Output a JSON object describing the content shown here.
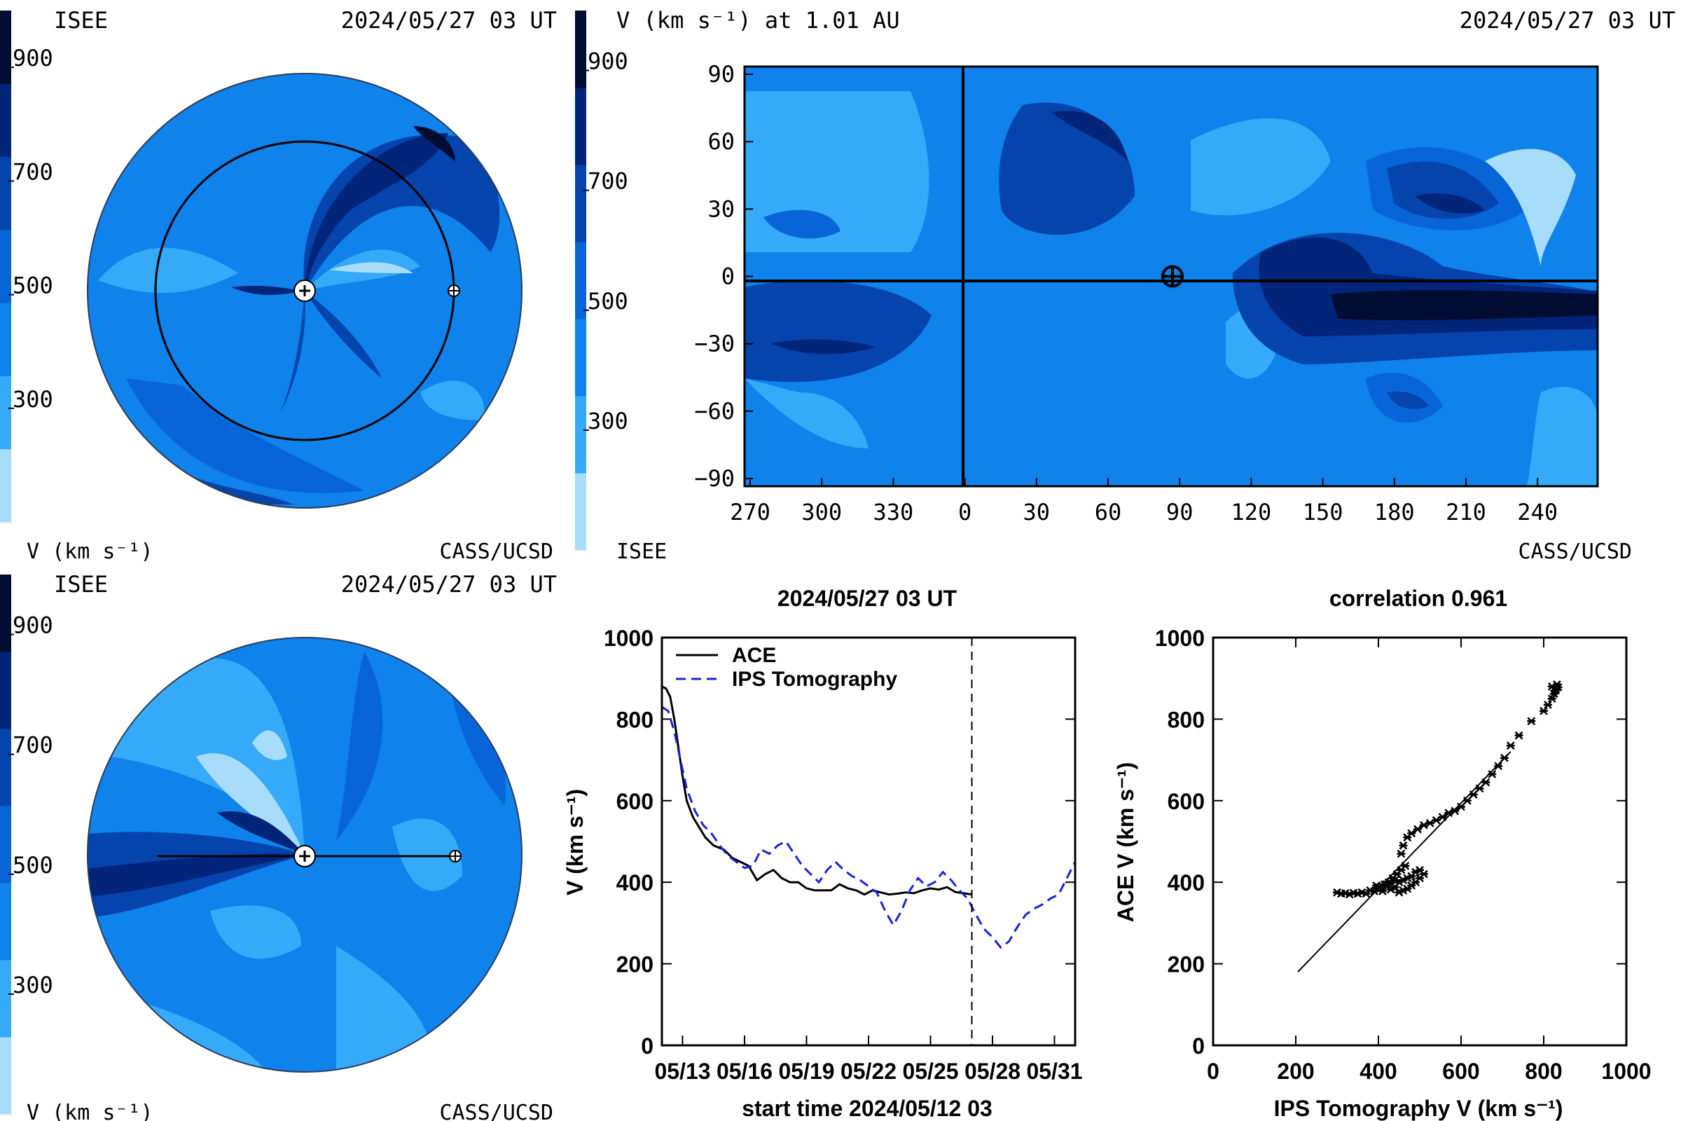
{
  "colors": {
    "levels": [
      "#a7dcfb",
      "#35aaf8",
      "#0f82ec",
      "#0865d8",
      "#0444ac",
      "#02257a",
      "#010c33"
    ],
    "levels_text": "light-to-dark 100-1000 km/s"
  },
  "panels": {
    "top_left": {
      "org": "ISEE",
      "time": "2024/05/27 03 UT",
      "ulabel": "V (km s⁻¹)",
      "credit": "CASS/UCSD",
      "colorbar_ticks": [
        "900",
        "700",
        "500",
        "300"
      ]
    },
    "top_right": {
      "title": "V (km s⁻¹) at 1.01 AU",
      "time": "2024/05/27 03 UT",
      "org": "ISEE",
      "credit": "CASS/UCSD",
      "colorbar_ticks": [
        "900",
        "700",
        "500",
        "300"
      ]
    },
    "bottom_left": {
      "org": "ISEE",
      "time": "2024/05/27 03 UT",
      "ulabel": "V (km s⁻¹)",
      "credit": "CASS/UCSD",
      "colorbar_ticks": [
        "900",
        "700",
        "500",
        "300"
      ]
    }
  },
  "chart_data": [
    {
      "type": "heatmap",
      "title": "V (km s⁻¹) at 1.01 AU",
      "x_tick_labels": [
        "270",
        "300",
        "330",
        "0",
        "30",
        "60",
        "90",
        "120",
        "150",
        "180",
        "210",
        "240"
      ],
      "y_tick_labels": [
        "90",
        "60",
        "30",
        "0",
        "−30",
        "−60",
        "−90"
      ],
      "ylim": [
        -90,
        90
      ],
      "earth_marker": {
        "longitude": 87,
        "latitude": 0
      }
    },
    {
      "type": "line",
      "title": "2024/05/27 03 UT",
      "xlabel": "start time 2024/05/12 03",
      "ylabel": "V (km s⁻¹)",
      "x_tick_labels": [
        "05/13",
        "05/16",
        "05/19",
        "05/22",
        "05/25",
        "05/28",
        "05/31"
      ],
      "y_tick_labels": [
        "0",
        "200",
        "400",
        "600",
        "800",
        "1000"
      ],
      "ylim": [
        0,
        1000
      ],
      "xlim": [
        0,
        20
      ],
      "vline": 15,
      "series": [
        {
          "name": "ACE",
          "color": "#000000",
          "dash": "solid",
          "x": [
            0,
            0.2,
            0.4,
            0.6,
            0.8,
            1.0,
            1.2,
            1.5,
            1.8,
            2.1,
            2.5,
            3.0,
            3.4,
            3.8,
            4.2,
            4.6,
            5.0,
            5.4,
            5.8,
            6.2,
            6.6,
            7.0,
            7.4,
            7.8,
            8.2,
            8.6,
            9.0,
            9.4,
            9.8,
            10.2,
            10.6,
            11.0,
            11.4,
            11.8,
            12.2,
            12.6,
            13.0,
            13.4,
            13.8,
            14.2,
            14.6,
            15.0
          ],
          "y": [
            880,
            875,
            855,
            800,
            730,
            660,
            600,
            560,
            535,
            510,
            490,
            480,
            460,
            450,
            440,
            405,
            420,
            430,
            410,
            400,
            400,
            385,
            380,
            380,
            380,
            395,
            385,
            380,
            370,
            380,
            375,
            370,
            372,
            375,
            373,
            380,
            385,
            382,
            388,
            376,
            373,
            370
          ]
        },
        {
          "name": "IPS Tomography",
          "color": "#1a22d6",
          "dash": "dashed",
          "x": [
            0,
            0.3,
            0.6,
            0.9,
            1.2,
            1.6,
            2.0,
            2.4,
            2.8,
            3.2,
            3.6,
            4.0,
            4.4,
            4.8,
            5.2,
            5.6,
            6.0,
            6.4,
            6.8,
            7.2,
            7.6,
            8.0,
            8.4,
            8.8,
            9.2,
            9.6,
            10.0,
            10.4,
            10.8,
            11.2,
            11.6,
            12.0,
            12.4,
            12.8,
            13.2,
            13.6,
            14.0,
            14.4,
            14.8,
            15.2,
            15.6,
            16.0,
            16.4,
            16.8,
            17.2,
            17.6,
            18.0,
            18.4,
            18.8,
            19.2,
            19.6,
            20.0
          ],
          "y": [
            830,
            820,
            770,
            700,
            630,
            575,
            540,
            520,
            490,
            465,
            450,
            435,
            440,
            480,
            470,
            490,
            500,
            470,
            440,
            420,
            400,
            430,
            450,
            430,
            415,
            405,
            390,
            375,
            330,
            295,
            330,
            380,
            410,
            390,
            400,
            425,
            405,
            380,
            360,
            320,
            285,
            265,
            240,
            255,
            290,
            320,
            335,
            345,
            360,
            370,
            410,
            450
          ]
        }
      ]
    },
    {
      "type": "scatter",
      "title": "correlation 0.961",
      "xlabel": "IPS Tomography V (km s⁻¹)",
      "ylabel": "ACE V (km s⁻¹)",
      "x_tick_labels": [
        "0",
        "200",
        "400",
        "600",
        "800",
        "1000"
      ],
      "y_tick_labels": [
        "0",
        "200",
        "400",
        "600",
        "800",
        "1000"
      ],
      "xlim": [
        0,
        1000
      ],
      "ylim": [
        0,
        1000
      ],
      "fit_line": {
        "x": [
          205,
          720
        ],
        "y": [
          180,
          720
        ]
      },
      "points": [
        [
          300,
          375
        ],
        [
          310,
          372
        ],
        [
          320,
          373
        ],
        [
          330,
          370
        ],
        [
          340,
          374
        ],
        [
          350,
          372
        ],
        [
          360,
          375
        ],
        [
          370,
          372
        ],
        [
          380,
          380
        ],
        [
          390,
          378
        ],
        [
          400,
          385
        ],
        [
          410,
          378
        ],
        [
          420,
          390
        ],
        [
          430,
          382
        ],
        [
          440,
          388
        ],
        [
          450,
          375
        ],
        [
          460,
          380
        ],
        [
          470,
          384
        ],
        [
          480,
          392
        ],
        [
          490,
          400
        ],
        [
          500,
          410
        ],
        [
          510,
          420
        ],
        [
          500,
          430
        ],
        [
          490,
          425
        ],
        [
          480,
          415
        ],
        [
          470,
          410
        ],
        [
          460,
          405
        ],
        [
          450,
          400
        ],
        [
          440,
          405
        ],
        [
          430,
          398
        ],
        [
          420,
          395
        ],
        [
          410,
          390
        ],
        [
          400,
          388
        ],
        [
          395,
          392
        ],
        [
          405,
          385
        ],
        [
          415,
          395
        ],
        [
          425,
          400
        ],
        [
          435,
          410
        ],
        [
          445,
          420
        ],
        [
          455,
          430
        ],
        [
          465,
          440
        ],
        [
          455,
          470
        ],
        [
          460,
          490
        ],
        [
          470,
          510
        ],
        [
          480,
          520
        ],
        [
          495,
          530
        ],
        [
          510,
          540
        ],
        [
          525,
          545
        ],
        [
          540,
          552
        ],
        [
          555,
          560
        ],
        [
          570,
          570
        ],
        [
          585,
          575
        ],
        [
          600,
          585
        ],
        [
          615,
          600
        ],
        [
          630,
          615
        ],
        [
          645,
          630
        ],
        [
          660,
          645
        ],
        [
          675,
          665
        ],
        [
          690,
          685
        ],
        [
          705,
          705
        ],
        [
          720,
          735
        ],
        [
          740,
          760
        ],
        [
          770,
          795
        ],
        [
          800,
          820
        ],
        [
          810,
          835
        ],
        [
          820,
          850
        ],
        [
          825,
          862
        ],
        [
          830,
          872
        ],
        [
          835,
          878
        ],
        [
          832,
          885
        ],
        [
          820,
          880
        ],
        [
          828,
          870
        ]
      ]
    }
  ]
}
